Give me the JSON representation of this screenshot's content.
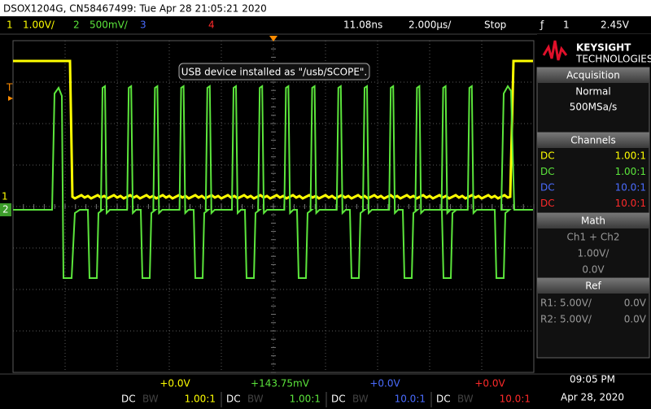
{
  "header": {
    "title": "DSOX1204G, CN58467499: Tue Apr 28 21:05:21 2020",
    "ch1_label": "1",
    "ch1_scale": "1.00V/",
    "ch2_label": "2",
    "ch2_scale": "500mV/",
    "ch3_label": "3",
    "ch4_label": "4",
    "delay": "11.08ns",
    "timebase": "2.000µs/",
    "run_state": "Stop",
    "trigger_icon": "ƒ",
    "trigger_source": "1",
    "trigger_level": "2.45V"
  },
  "screen": {
    "message": "USB device installed as \"/usb/SCOPE\".",
    "trigger_marker": "T",
    "ch1_marker": "1",
    "ch2_marker": "2"
  },
  "sidebar": {
    "brand": "KEYSIGHT",
    "brand_sub": "TECHNOLOGIES",
    "acquisition": {
      "title": "Acquisition",
      "mode": "Normal",
      "rate": "500MSa/s"
    },
    "channels": {
      "title": "Channels",
      "rows": [
        [
          "DC",
          "1.00:1"
        ],
        [
          "DC",
          "1.00:1"
        ],
        [
          "DC",
          "10.0:1"
        ],
        [
          "DC",
          "10.0:1"
        ]
      ]
    },
    "math": {
      "title": "Math",
      "function": "Ch1 + Ch2",
      "scale": "1.00V/",
      "offset": "0.0V"
    },
    "ref": {
      "title": "Ref",
      "rows": [
        [
          "R1:",
          "5.00V/",
          "0.0V"
        ],
        [
          "R2:",
          "5.00V/",
          "0.0V"
        ]
      ]
    }
  },
  "footer": {
    "channels": [
      {
        "offset": "+0.0V",
        "coupling": "DC",
        "bw": "BW",
        "probe": "1.00:1"
      },
      {
        "offset": "+143.75mV",
        "coupling": "DC",
        "bw": "BW",
        "probe": "1.00:1"
      },
      {
        "offset": "+0.0V",
        "coupling": "DC",
        "bw": "BW",
        "probe": "10.0:1"
      },
      {
        "offset": "+0.0V",
        "coupling": "DC",
        "bw": "BW",
        "probe": "10.0:1"
      }
    ],
    "time": "09:05 PM",
    "date": "Apr 28, 2020"
  }
}
